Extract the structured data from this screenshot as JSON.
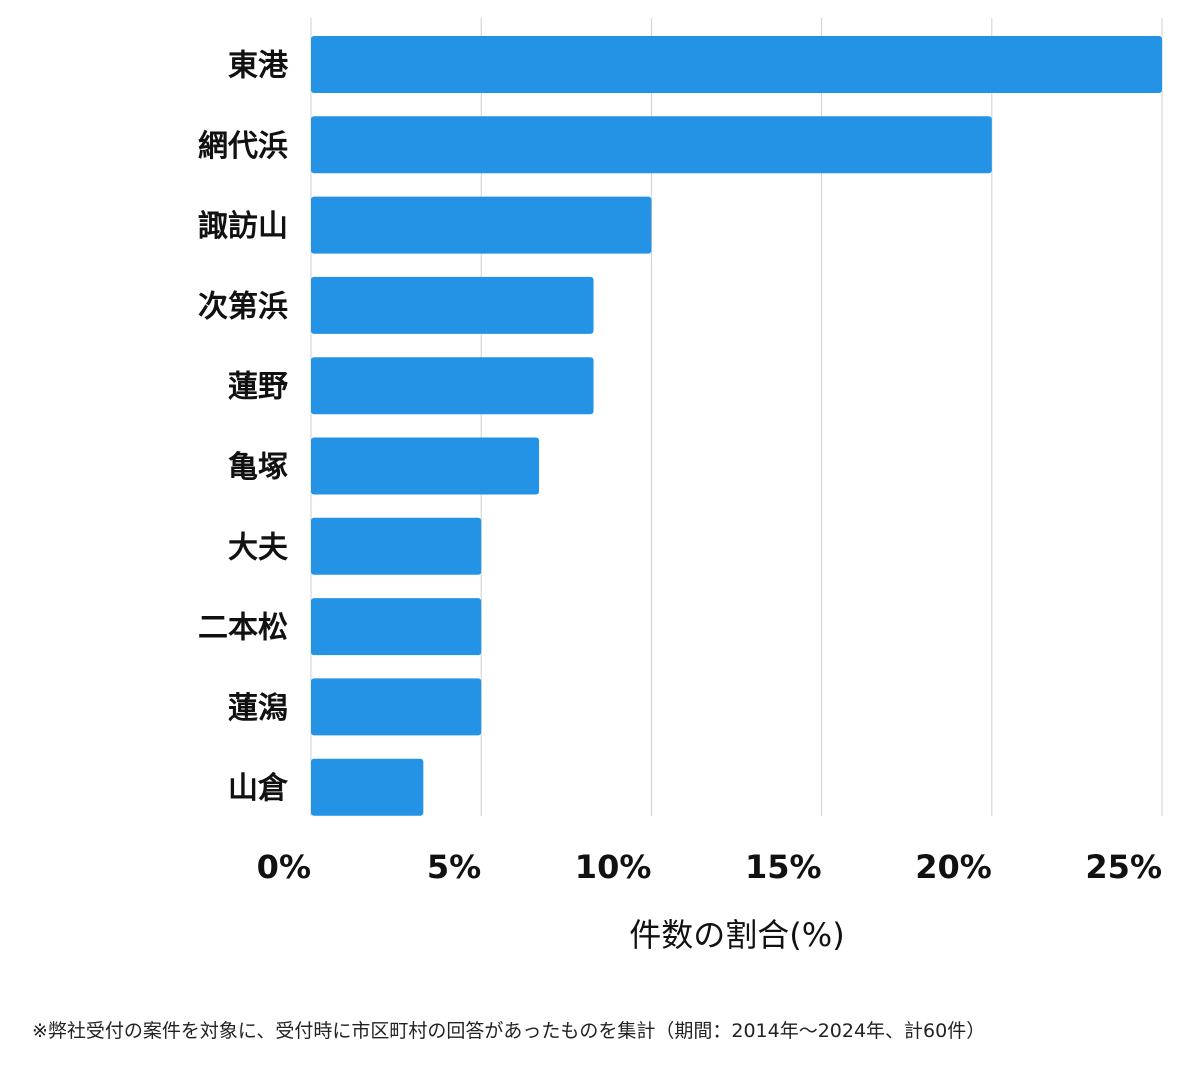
{
  "chart_data": {
    "type": "bar",
    "orientation": "horizontal",
    "categories": [
      "東港",
      "網代浜",
      "諏訪山",
      "次第浜",
      "蓮野",
      "亀塚",
      "大夫",
      "二本松",
      "蓮潟",
      "山倉"
    ],
    "values": [
      25.0,
      20.0,
      10.0,
      8.3,
      8.3,
      6.7,
      5.0,
      5.0,
      5.0,
      3.3
    ],
    "xlim": [
      0,
      25
    ],
    "xticks": [
      0,
      5,
      10,
      15,
      20,
      25
    ],
    "xtick_labels": [
      "0%",
      "5%",
      "10%",
      "15%",
      "20%",
      "25%"
    ],
    "xlabel": "件数の割合(%)",
    "ylabel": "",
    "grid": true,
    "bar_color": "#2493E6"
  },
  "footnote": "※弊社受付の案件を対象に、受付時に市区町村の回答があったものを集計（期間：2014年～2024年、計60件）"
}
